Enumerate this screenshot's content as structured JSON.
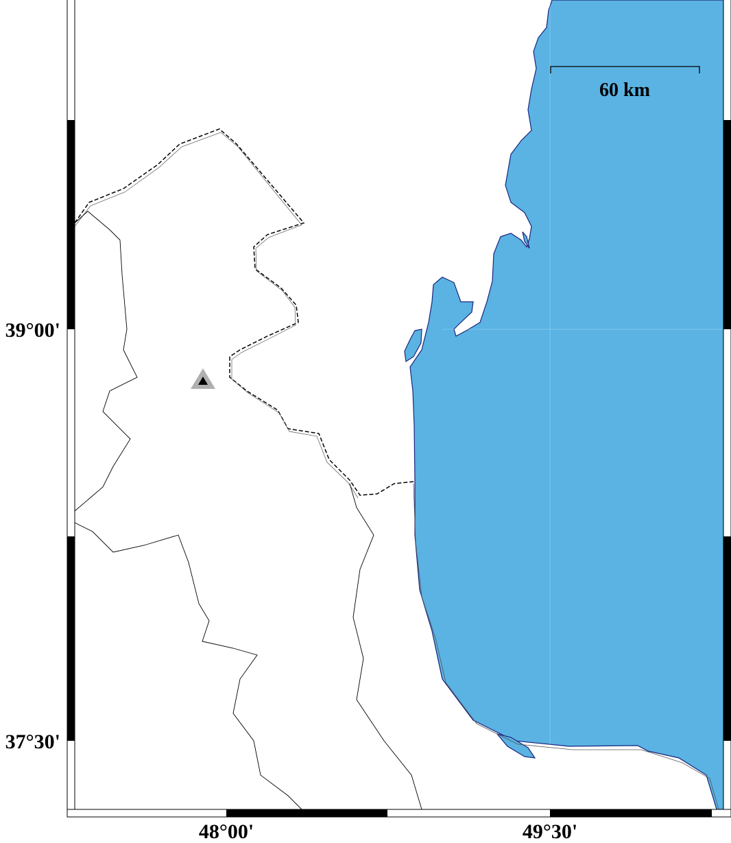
{
  "map": {
    "colors": {
      "sea": "#5ab3e2",
      "coastline": "#1a237e",
      "frame": "#000000",
      "station_outer": "#b0b0b0",
      "station_inner": "#000000"
    },
    "lat_labels": [
      "39°00'",
      "37°30'"
    ],
    "lon_labels": [
      "48°00'",
      "49°30'"
    ],
    "scale_bar": {
      "label": "60 km"
    },
    "station": {
      "icon": "triangle-station-icon"
    }
  }
}
